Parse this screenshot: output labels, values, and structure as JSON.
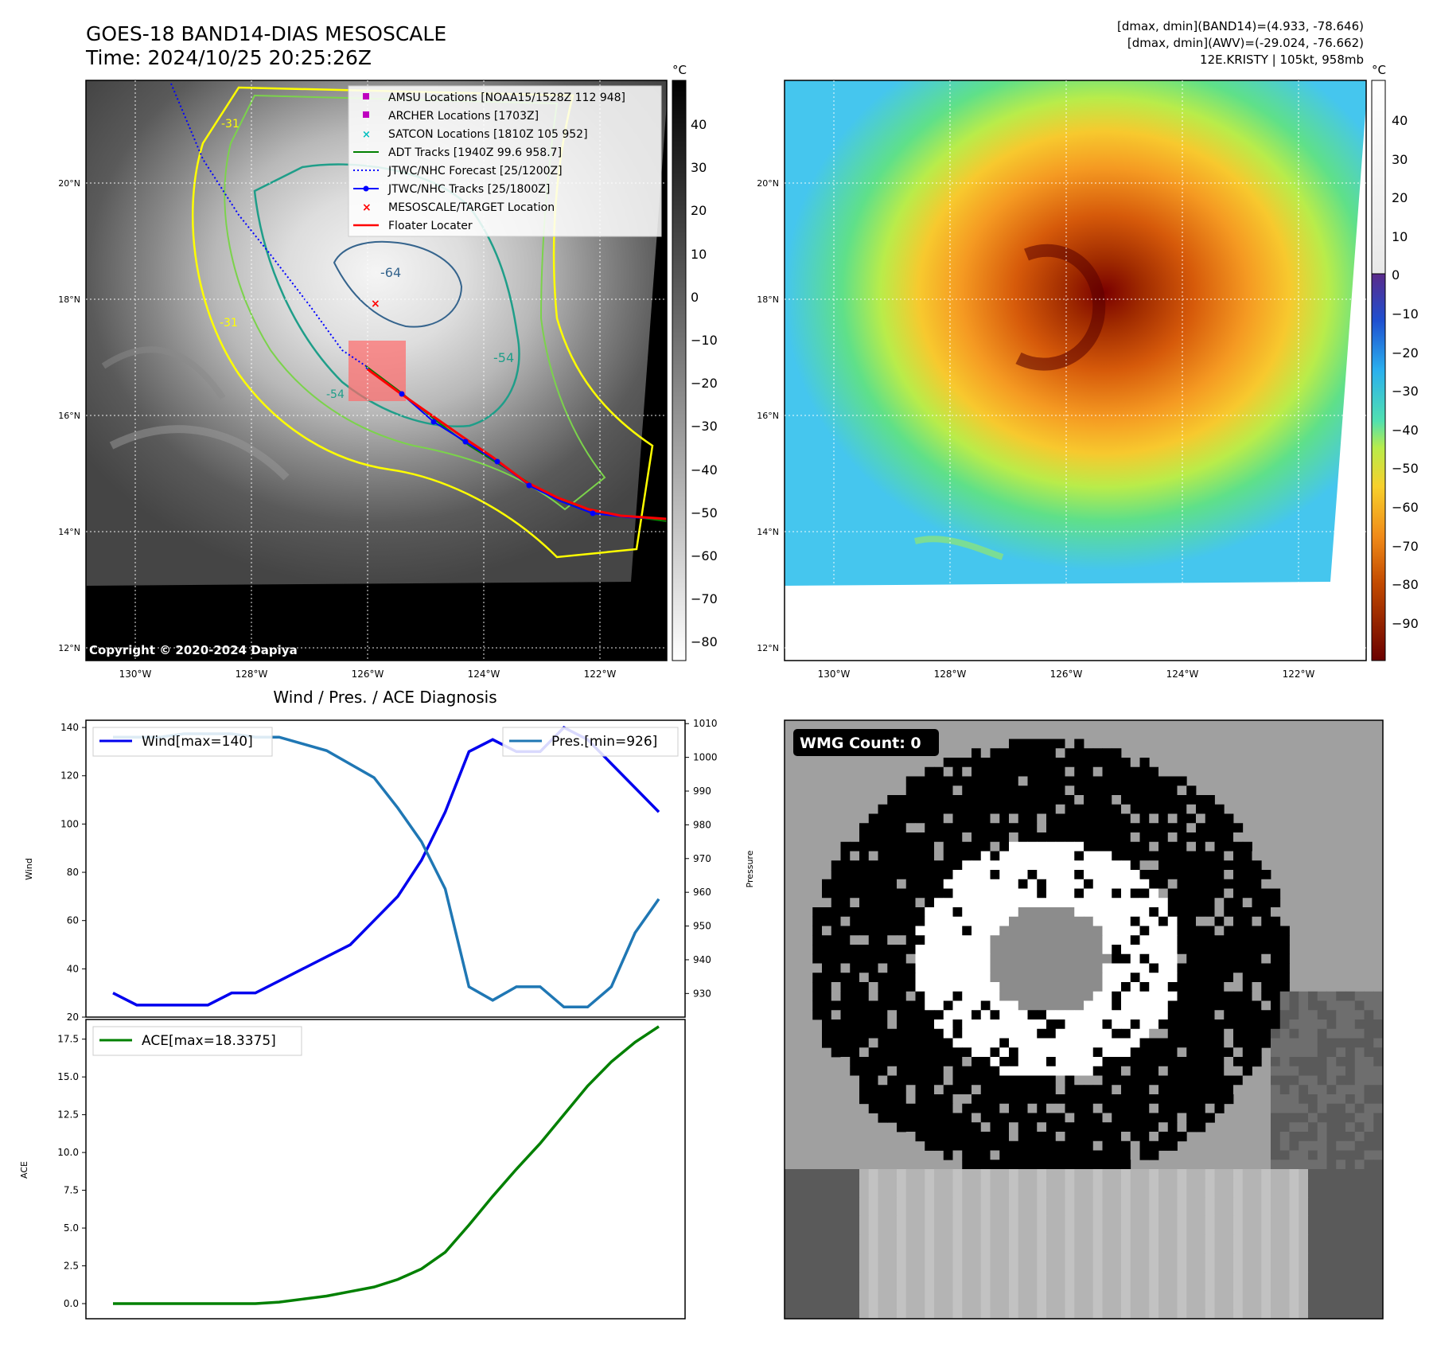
{
  "title": {
    "line1": "GOES-18 BAND14-DIAS MESOSCALE",
    "line2": "Time: 2024/10/25 20:25:26Z"
  },
  "info": {
    "line1": "[dmax, dmin](BAND14)=(4.933, -78.646)",
    "line2": "[dmax, dmin](AWV)=(-29.024, -76.662)",
    "line3": "12E.KRISTY | 105kt, 958mb"
  },
  "maps": {
    "lat_labels": [
      "20°N",
      "18°N",
      "16°N",
      "14°N",
      "12°N"
    ],
    "lon_labels": [
      "130°W",
      "128°W",
      "126°W",
      "124°W",
      "122°W"
    ],
    "copyright": "Copyright © 2020-2024 Dapiya"
  },
  "colorbar_left": {
    "unit": "°C",
    "ticks": [
      "40",
      "30",
      "20",
      "10",
      "0",
      "−10",
      "−20",
      "−30",
      "−40",
      "−50",
      "−60",
      "−70",
      "−80"
    ]
  },
  "colorbar_right": {
    "unit": "°C",
    "ticks": [
      "40",
      "30",
      "20",
      "10",
      "0",
      "−10",
      "−20",
      "−30",
      "−40",
      "−50",
      "−60",
      "−70",
      "−80",
      "−90"
    ]
  },
  "legend": {
    "amsu": "AMSU Locations [NOAA15/1528Z 112 948]",
    "archer": "ARCHER Locations [1703Z]",
    "satcon": "SATCON Locations [1810Z 105 952]",
    "adt": "ADT Tracks [1940Z 99.6 958.7]",
    "forecast": "JTWC/NHC Forecast [25/1200Z]",
    "tracks": "JTWC/NHC Tracks [25/1800Z]",
    "target": "MESOSCALE/TARGET Location",
    "floater": "Floater Locater"
  },
  "contour_labels": [
    "-31",
    "-64",
    "-54",
    "-31",
    "-54"
  ],
  "wmg": {
    "label": "WMG Count: 0"
  },
  "colors": {
    "wind": "#0000ee",
    "pressure": "#1f77b4",
    "ace": "#008000",
    "jtwc": "#0000ff",
    "floater": "#ff0000",
    "adt": "#008000",
    "amsu": "#bf00bf",
    "satcon": "#00bfbf",
    "contour_yellow": "#ffff00",
    "contour_green": "#7bd34b",
    "contour_teal": "#1f9e89"
  },
  "chart_data": [
    {
      "type": "line",
      "title": "Wind / Pres. / ACE Diagnosis",
      "xlabel": "",
      "ylabel": "Wind",
      "y2label": "Pressure",
      "ylim": [
        20,
        143
      ],
      "y2lim": [
        923,
        1011
      ],
      "yticks": [
        20,
        40,
        60,
        80,
        100,
        120,
        140
      ],
      "y2ticks": [
        930,
        940,
        950,
        960,
        970,
        980,
        990,
        1000,
        1010
      ],
      "x": [
        0,
        1,
        2,
        3,
        4,
        5,
        6,
        7,
        8,
        9,
        10,
        11,
        12,
        13,
        14,
        15,
        16,
        17,
        18,
        19,
        20,
        21,
        22,
        23
      ],
      "series": [
        {
          "name": "Wind[max=140]",
          "axis": "left",
          "values": [
            30,
            25,
            25,
            25,
            25,
            30,
            30,
            35,
            40,
            45,
            50,
            60,
            70,
            85,
            105,
            130,
            135,
            130,
            130,
            140,
            135,
            125,
            115,
            105
          ]
        },
        {
          "name": "Pres.[min=926]",
          "axis": "right",
          "values": [
            1006,
            1006,
            1006,
            1007,
            1007,
            1007,
            1006,
            1006,
            1004,
            1002,
            998,
            994,
            985,
            975,
            961,
            932,
            928,
            932,
            932,
            926,
            926,
            932,
            948,
            958
          ]
        }
      ]
    },
    {
      "type": "line",
      "title": "",
      "xlabel": "",
      "ylabel": "ACE",
      "ylim": [
        -1,
        18.8
      ],
      "yticks": [
        0.0,
        2.5,
        5.0,
        7.5,
        10.0,
        12.5,
        15.0,
        17.5
      ],
      "ytick_labels": [
        "0.0",
        "2.5",
        "5.0",
        "7.5",
        "10.0",
        "12.5",
        "15.0",
        "17.5"
      ],
      "x": [
        0,
        1,
        2,
        3,
        4,
        5,
        6,
        7,
        8,
        9,
        10,
        11,
        12,
        13,
        14,
        15,
        16,
        17,
        18,
        19,
        20,
        21,
        22,
        23
      ],
      "series": [
        {
          "name": "ACE[max=18.3375]",
          "values": [
            0,
            0,
            0,
            0,
            0,
            0,
            0,
            0.1,
            0.3,
            0.5,
            0.8,
            1.1,
            1.6,
            2.3,
            3.4,
            5.2,
            7.1,
            8.9,
            10.6,
            12.5,
            14.4,
            16.0,
            17.3,
            18.3375
          ]
        }
      ]
    }
  ]
}
